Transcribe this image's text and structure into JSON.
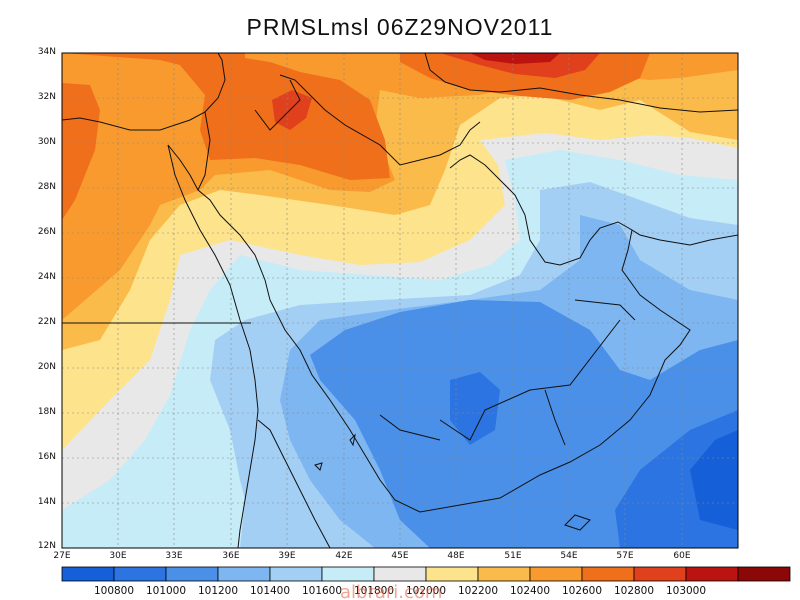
{
  "title": "PRMSLmsl 06Z29NOV2011",
  "watermark": "albrari.com",
  "map": {
    "lat_labels": [
      "34N",
      "32N",
      "30N",
      "28N",
      "26N",
      "24N",
      "22N",
      "20N",
      "18N",
      "16N",
      "14N",
      "12N"
    ],
    "lon_labels": [
      "27E",
      "30E",
      "33E",
      "36E",
      "39E",
      "42E",
      "45E",
      "48E",
      "51E",
      "54E",
      "57E",
      "60E"
    ],
    "lat_range": [
      12,
      34
    ],
    "lon_range": [
      27,
      63
    ]
  },
  "colorbar": {
    "colors": [
      "#1560d8",
      "#2b74e2",
      "#4a90e8",
      "#7db6f0",
      "#a4cff5",
      "#c6ecf8",
      "#e8e8e8",
      "#fde38c",
      "#fbbb4a",
      "#f89a2e",
      "#f06f1a",
      "#e1401c",
      "#bb1410",
      "#8c0808"
    ],
    "labels": [
      "100800",
      "101000",
      "101200",
      "101400",
      "101600",
      "101800",
      "102000",
      "102200",
      "102400",
      "102600",
      "102800",
      "103000"
    ]
  }
}
